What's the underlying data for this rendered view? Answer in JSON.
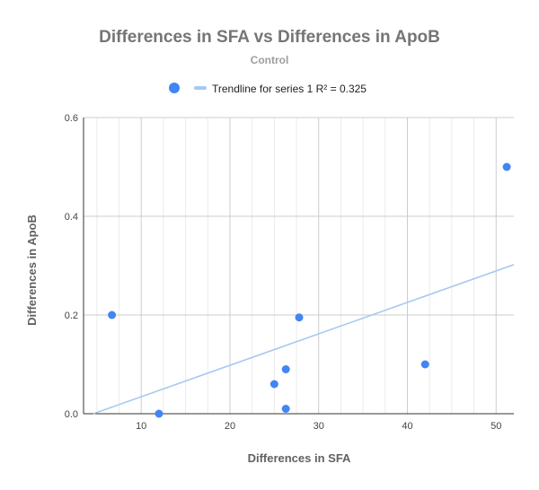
{
  "chart_data": {
    "type": "scatter",
    "title": "Differences in SFA vs Differences in ApoB",
    "subtitle": "Control",
    "xlabel": "Differences in SFA",
    "ylabel": "Differences in ApoB",
    "xlim": [
      3.5,
      52
    ],
    "ylim": [
      0,
      0.6
    ],
    "x_ticks": [
      10,
      20,
      30,
      40,
      50
    ],
    "y_ticks": [
      0.0,
      0.2,
      0.4,
      0.6
    ],
    "x_tick_labels": [
      "10",
      "20",
      "30",
      "40",
      "50"
    ],
    "y_tick_labels": [
      "0.0",
      "0.2",
      "0.4",
      "0.6"
    ],
    "grid": true,
    "legend": {
      "position": "top",
      "entries": [
        "",
        "Trendline for series 1 R² = 0.325"
      ]
    },
    "series": [
      {
        "points": [
          {
            "x": 6.7,
            "y": 0.2
          },
          {
            "x": 12.0,
            "y": 0.0
          },
          {
            "x": 25.0,
            "y": 0.06
          },
          {
            "x": 26.3,
            "y": 0.01
          },
          {
            "x": 26.3,
            "y": 0.09
          },
          {
            "x": 27.8,
            "y": 0.195
          },
          {
            "x": 42.0,
            "y": 0.1
          },
          {
            "x": 51.2,
            "y": 0.5
          }
        ],
        "color": "#4285f4"
      }
    ],
    "trendline": {
      "label": "Trendline for series 1 R² = 0.325",
      "start": {
        "x": 4.6,
        "y": 0.0
      },
      "end": {
        "x": 52,
        "y": 0.302
      },
      "color": "#a8c8f0"
    }
  }
}
